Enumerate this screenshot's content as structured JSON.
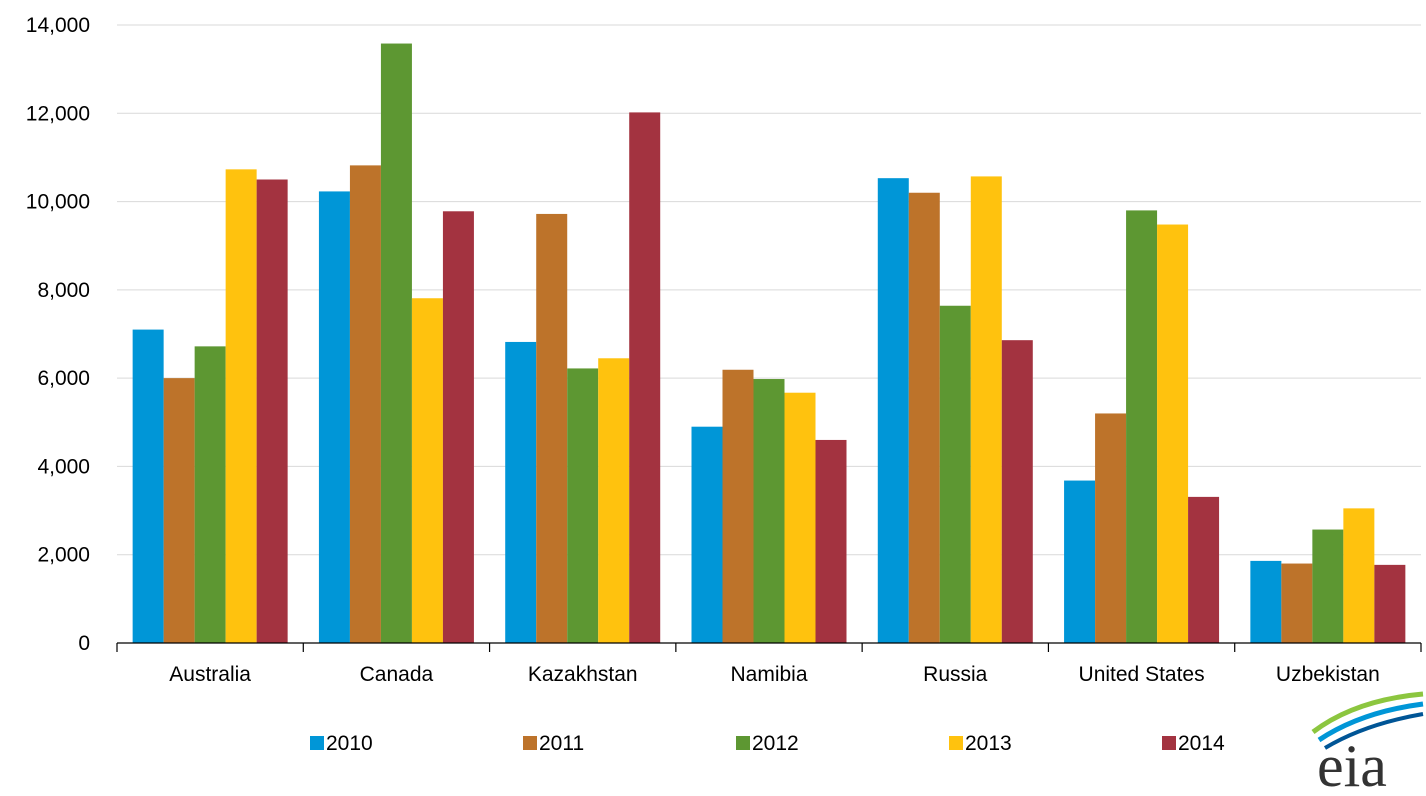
{
  "chart_data": {
    "type": "bar",
    "title": "",
    "xlabel": "",
    "ylabel": "",
    "categories": [
      "Australia",
      "Canada",
      "Kazakhstan",
      "Namibia",
      "Russia",
      "United States",
      "Uzbekistan"
    ],
    "series": [
      {
        "name": "2010",
        "color": "#0096d7",
        "values": [
          7100,
          10230,
          6820,
          4900,
          10530,
          3680,
          1860
        ]
      },
      {
        "name": "2011",
        "color": "#bd732a",
        "values": [
          6000,
          10820,
          9720,
          6190,
          10200,
          5200,
          1800
        ]
      },
      {
        "name": "2012",
        "color": "#5d9732",
        "values": [
          6720,
          13580,
          6220,
          5980,
          7640,
          9800,
          2570
        ]
      },
      {
        "name": "2013",
        "color": "#ffc20e",
        "values": [
          10730,
          7810,
          6450,
          5670,
          10570,
          9480,
          3050
        ]
      },
      {
        "name": "2014",
        "color": "#a33340",
        "values": [
          10500,
          9780,
          12020,
          4600,
          6860,
          3310,
          1770
        ]
      }
    ],
    "ylim": [
      0,
      14000
    ],
    "yticks": [
      "0",
      "2,000",
      "4,000",
      "6,000",
      "8,000",
      "10,000",
      "12,000",
      "14,000"
    ],
    "ytick_values": [
      0,
      2000,
      4000,
      6000,
      8000,
      10000,
      12000,
      14000
    ],
    "grid": true,
    "legend_position": "bottom"
  },
  "logo": {
    "text": "eia",
    "icon": "eia-logo-icon"
  }
}
